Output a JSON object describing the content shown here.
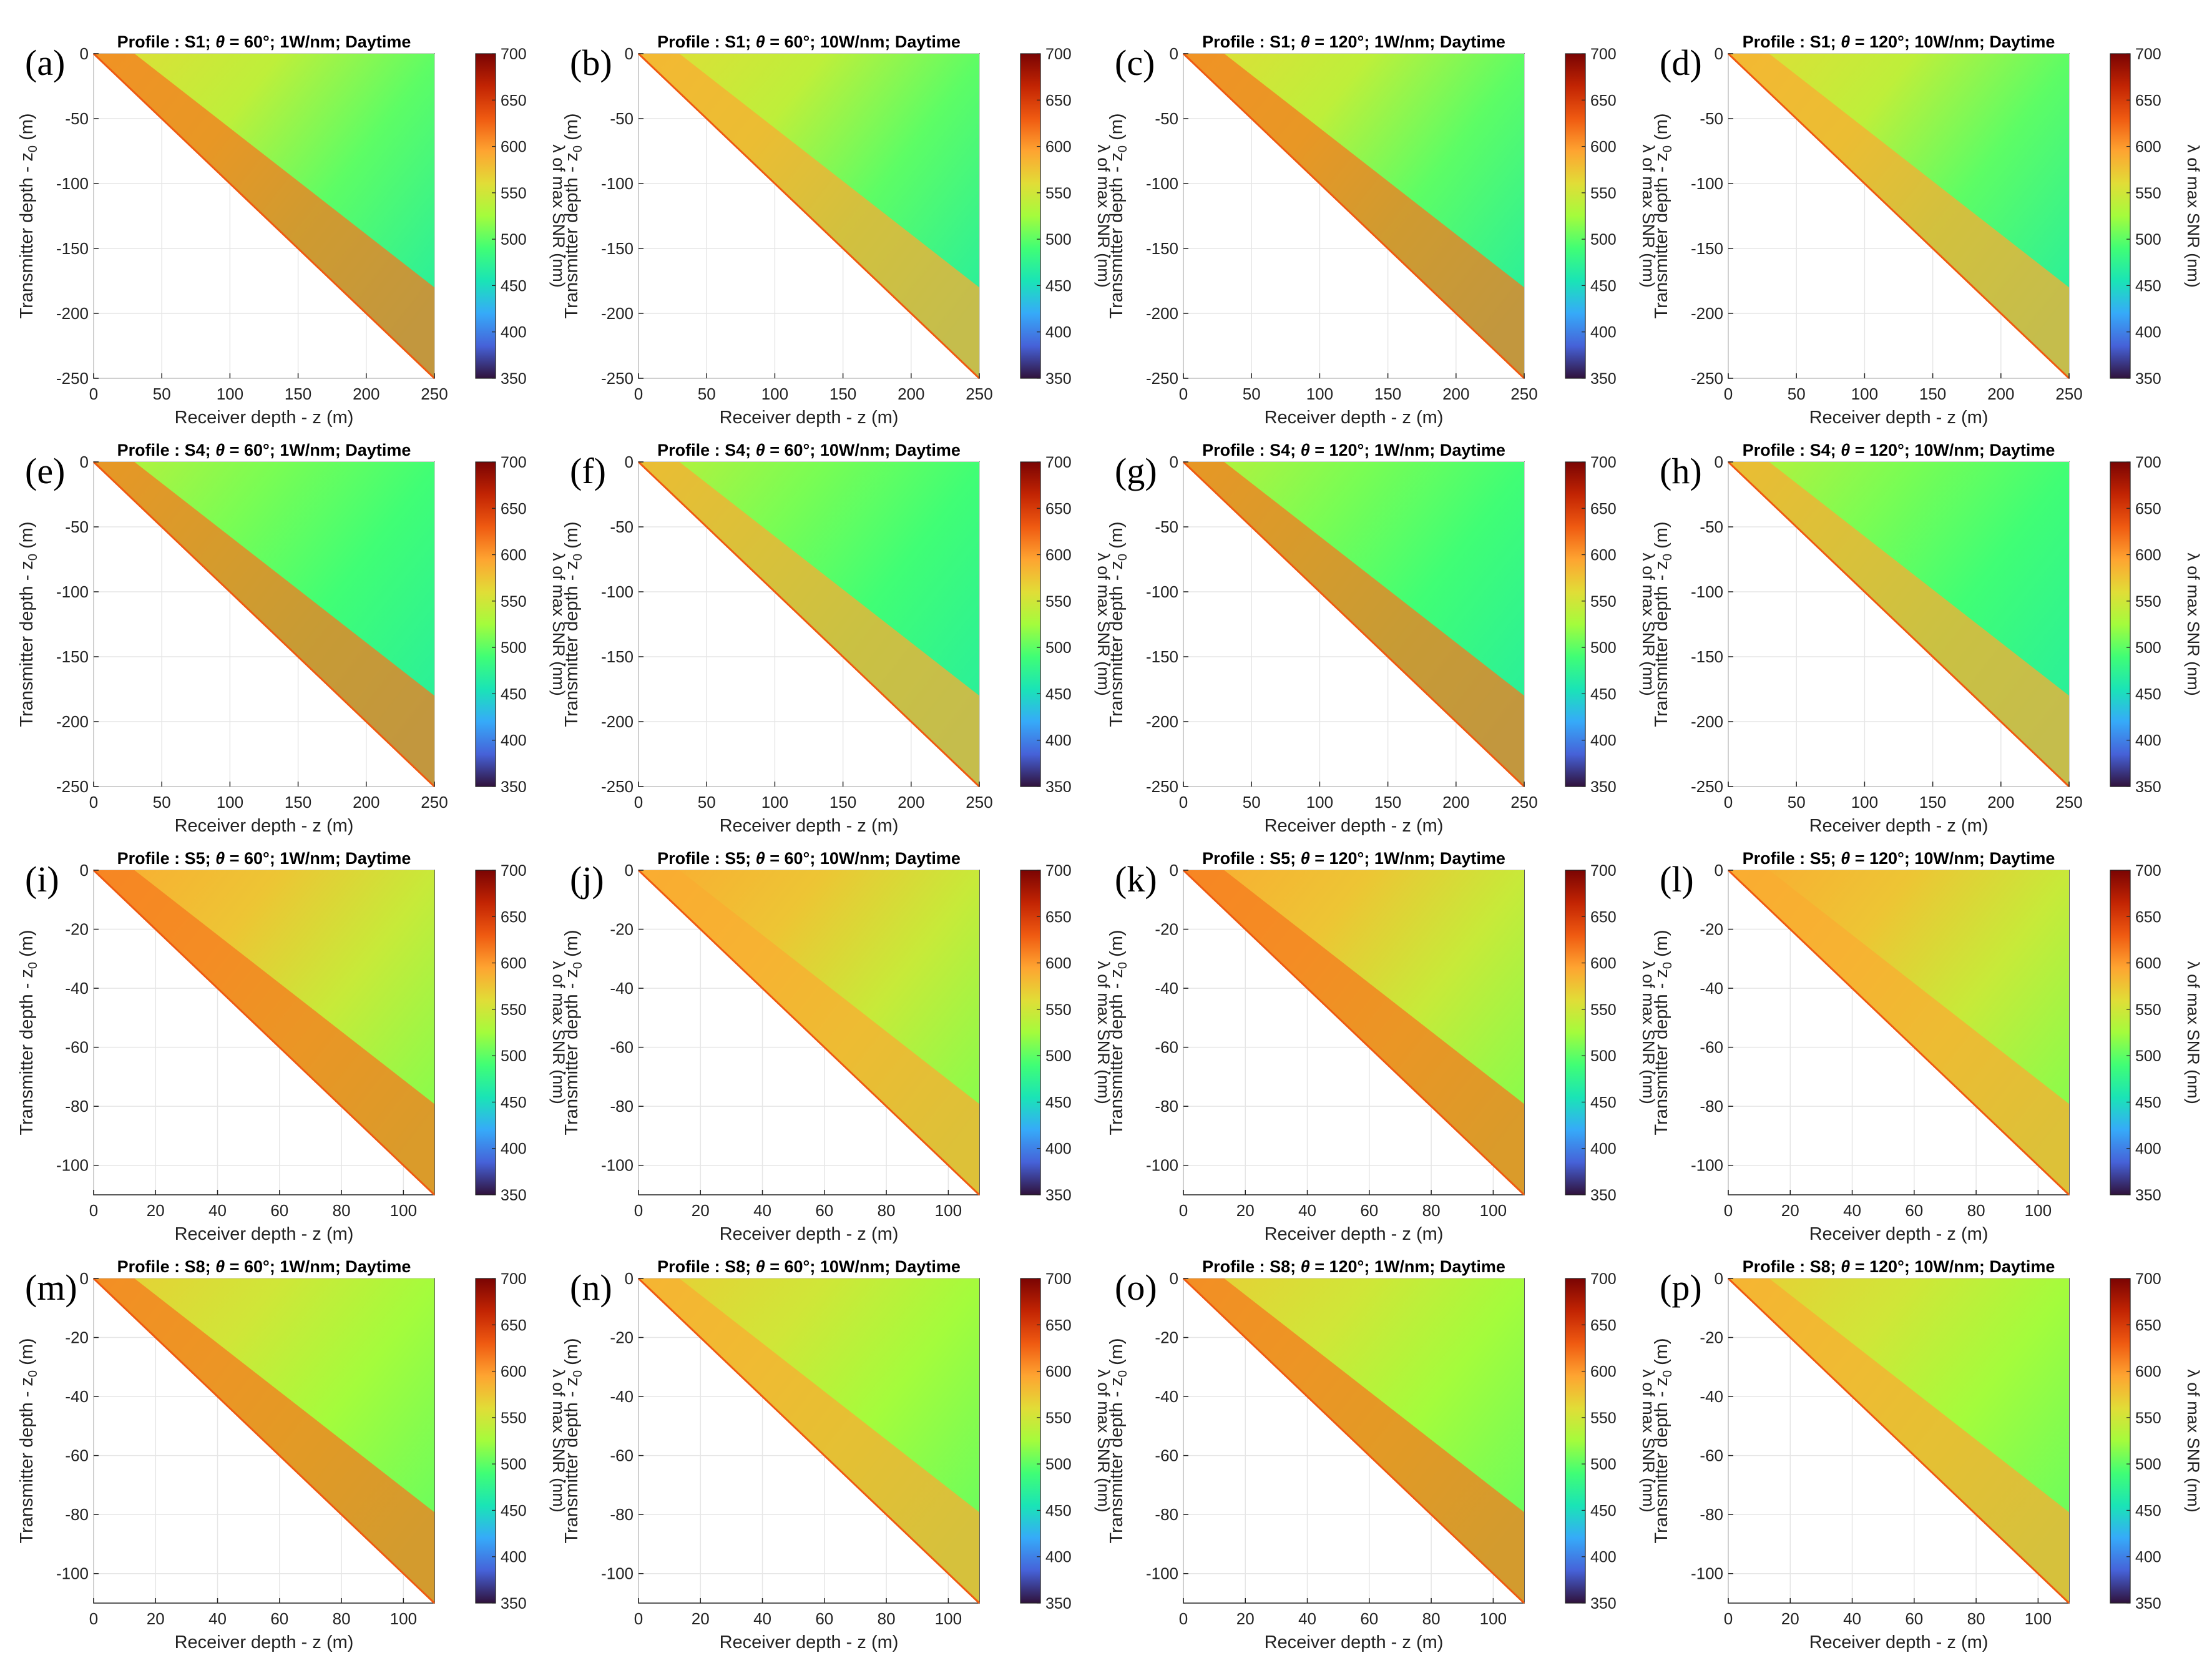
{
  "figure": {
    "colorbar_label": "λ of max SNR (nm)",
    "xlabel": "Receiver depth - z (m)",
    "ylabel_main": "Transmitter depth - z",
    "ylabel_sub": "0",
    "ylabel_unit": " (m)",
    "colorbar_ticks": [
      "700",
      "650",
      "600",
      "550",
      "500",
      "450",
      "400",
      "350"
    ],
    "colorbar_range": [
      350,
      700
    ],
    "colormap": "turbo"
  },
  "chart_data": [
    {
      "panel": "(a)",
      "profile": "S1",
      "theta_deg": 60,
      "power": "1W/nm",
      "time": "Daytime",
      "title_prefix": "Profile : S1; ",
      "title_suffix": " = 60°; 1W/nm; Daytime",
      "type": "heatmap",
      "xlim": [
        0,
        250
      ],
      "ylim": [
        -250,
        0
      ],
      "xticks": [
        0,
        50,
        100,
        150,
        200,
        250
      ],
      "yticks": [
        0,
        -50,
        -100,
        -150,
        -200,
        -250
      ]
    },
    {
      "panel": "(b)",
      "profile": "S1",
      "theta_deg": 60,
      "power": "10W/nm",
      "time": "Daytime",
      "title_prefix": "Profile : S1; ",
      "title_suffix": " = 60°; 10W/nm; Daytime",
      "type": "heatmap",
      "xlim": [
        0,
        250
      ],
      "ylim": [
        -250,
        0
      ],
      "xticks": [
        0,
        50,
        100,
        150,
        200,
        250
      ],
      "yticks": [
        0,
        -50,
        -100,
        -150,
        -200,
        -250
      ]
    },
    {
      "panel": "(c)",
      "profile": "S1",
      "theta_deg": 120,
      "power": "1W/nm",
      "time": "Daytime",
      "title_prefix": "Profile : S1; ",
      "title_suffix": " = 120°; 1W/nm; Daytime",
      "type": "heatmap",
      "xlim": [
        0,
        250
      ],
      "ylim": [
        -250,
        0
      ],
      "xticks": [
        0,
        50,
        100,
        150,
        200,
        250
      ],
      "yticks": [
        0,
        -50,
        -100,
        -150,
        -200,
        -250
      ]
    },
    {
      "panel": "(d)",
      "profile": "S1",
      "theta_deg": 120,
      "power": "10W/nm",
      "time": "Daytime",
      "title_prefix": "Profile : S1; ",
      "title_suffix": " = 120°; 10W/nm; Daytime",
      "type": "heatmap",
      "xlim": [
        0,
        250
      ],
      "ylim": [
        -250,
        0
      ],
      "xticks": [
        0,
        50,
        100,
        150,
        200,
        250
      ],
      "yticks": [
        0,
        -50,
        -100,
        -150,
        -200,
        -250
      ]
    },
    {
      "panel": "(e)",
      "profile": "S4",
      "theta_deg": 60,
      "power": "1W/nm",
      "time": "Daytime",
      "title_prefix": "Profile : S4; ",
      "title_suffix": " = 60°; 1W/nm; Daytime",
      "type": "heatmap",
      "xlim": [
        0,
        250
      ],
      "ylim": [
        -250,
        0
      ],
      "xticks": [
        0,
        50,
        100,
        150,
        200,
        250
      ],
      "yticks": [
        0,
        -50,
        -100,
        -150,
        -200,
        -250
      ]
    },
    {
      "panel": "(f)",
      "profile": "S4",
      "theta_deg": 60,
      "power": "10W/nm",
      "time": "Daytime",
      "title_prefix": "Profile : S4; ",
      "title_suffix": " = 60°; 10W/nm; Daytime",
      "type": "heatmap",
      "xlim": [
        0,
        250
      ],
      "ylim": [
        -250,
        0
      ],
      "xticks": [
        0,
        50,
        100,
        150,
        200,
        250
      ],
      "yticks": [
        0,
        -50,
        -100,
        -150,
        -200,
        -250
      ]
    },
    {
      "panel": "(g)",
      "profile": "S4",
      "theta_deg": 120,
      "power": "1W/nm",
      "time": "Daytime",
      "title_prefix": "Profile : S4; ",
      "title_suffix": " = 120°; 1W/nm; Daytime",
      "type": "heatmap",
      "xlim": [
        0,
        250
      ],
      "ylim": [
        -250,
        0
      ],
      "xticks": [
        0,
        50,
        100,
        150,
        200,
        250
      ],
      "yticks": [
        0,
        -50,
        -100,
        -150,
        -200,
        -250
      ]
    },
    {
      "panel": "(h)",
      "profile": "S4",
      "theta_deg": 120,
      "power": "10W/nm",
      "time": "Daytime",
      "title_prefix": "Profile : S4; ",
      "title_suffix": " = 120°; 10W/nm; Daytime",
      "type": "heatmap",
      "xlim": [
        0,
        250
      ],
      "ylim": [
        -250,
        0
      ],
      "xticks": [
        0,
        50,
        100,
        150,
        200,
        250
      ],
      "yticks": [
        0,
        -50,
        -100,
        -150,
        -200,
        -250
      ]
    },
    {
      "panel": "(i)",
      "profile": "S5",
      "theta_deg": 60,
      "power": "1W/nm",
      "time": "Daytime",
      "title_prefix": "Profile : S5; ",
      "title_suffix": " = 60°; 1W/nm; Daytime",
      "type": "heatmap",
      "xlim": [
        0,
        110
      ],
      "ylim": [
        -110,
        0
      ],
      "xticks": [
        0,
        20,
        40,
        60,
        80,
        100
      ],
      "yticks": [
        0,
        -20,
        -40,
        -60,
        -80,
        -100
      ]
    },
    {
      "panel": "(j)",
      "profile": "S5",
      "theta_deg": 60,
      "power": "10W/nm",
      "time": "Daytime",
      "title_prefix": "Profile : S5; ",
      "title_suffix": " = 60°; 10W/nm; Daytime",
      "type": "heatmap",
      "xlim": [
        0,
        110
      ],
      "ylim": [
        -110,
        0
      ],
      "xticks": [
        0,
        20,
        40,
        60,
        80,
        100
      ],
      "yticks": [
        0,
        -20,
        -40,
        -60,
        -80,
        -100
      ]
    },
    {
      "panel": "(k)",
      "profile": "S5",
      "theta_deg": 120,
      "power": "1W/nm",
      "time": "Daytime",
      "title_prefix": "Profile : S5; ",
      "title_suffix": " = 120°; 1W/nm; Daytime",
      "type": "heatmap",
      "xlim": [
        0,
        110
      ],
      "ylim": [
        -110,
        0
      ],
      "xticks": [
        0,
        20,
        40,
        60,
        80,
        100
      ],
      "yticks": [
        0,
        -20,
        -40,
        -60,
        -80,
        -100
      ]
    },
    {
      "panel": "(l)",
      "profile": "S5",
      "theta_deg": 120,
      "power": "10W/nm",
      "time": "Daytime",
      "title_prefix": "Profile : S5; ",
      "title_suffix": " = 120°; 10W/nm; Daytime",
      "type": "heatmap",
      "xlim": [
        0,
        110
      ],
      "ylim": [
        -110,
        0
      ],
      "xticks": [
        0,
        20,
        40,
        60,
        80,
        100
      ],
      "yticks": [
        0,
        -20,
        -40,
        -60,
        -80,
        -100
      ]
    },
    {
      "panel": "(m)",
      "profile": "S8",
      "theta_deg": 60,
      "power": "1W/nm",
      "time": "Daytime",
      "title_prefix": "Profile : S8; ",
      "title_suffix": " = 60°; 1W/nm; Daytime",
      "type": "heatmap",
      "xlim": [
        0,
        110
      ],
      "ylim": [
        -110,
        0
      ],
      "xticks": [
        0,
        20,
        40,
        60,
        80,
        100
      ],
      "yticks": [
        0,
        -20,
        -40,
        -60,
        -80,
        -100
      ]
    },
    {
      "panel": "(n)",
      "profile": "S8",
      "theta_deg": 60,
      "power": "10W/nm",
      "time": "Daytime",
      "title_prefix": "Profile : S8; ",
      "title_suffix": " = 60°; 10W/nm; Daytime",
      "type": "heatmap",
      "xlim": [
        0,
        110
      ],
      "ylim": [
        -110,
        0
      ],
      "xticks": [
        0,
        20,
        40,
        60,
        80,
        100
      ],
      "yticks": [
        0,
        -20,
        -40,
        -60,
        -80,
        -100
      ]
    },
    {
      "panel": "(o)",
      "profile": "S8",
      "theta_deg": 120,
      "power": "1W/nm",
      "time": "Daytime",
      "title_prefix": "Profile : S8; ",
      "title_suffix": " = 120°; 1W/nm; Daytime",
      "type": "heatmap",
      "xlim": [
        0,
        110
      ],
      "ylim": [
        -110,
        0
      ],
      "xticks": [
        0,
        20,
        40,
        60,
        80,
        100
      ],
      "yticks": [
        0,
        -20,
        -40,
        -60,
        -80,
        -100
      ]
    },
    {
      "panel": "(p)",
      "profile": "S8",
      "theta_deg": 120,
      "power": "10W/nm",
      "time": "Daytime",
      "title_prefix": "Profile : S8; ",
      "title_suffix": " = 120°; 10W/nm; Daytime",
      "type": "heatmap",
      "xlim": [
        0,
        110
      ],
      "ylim": [
        -110,
        0
      ],
      "xticks": [
        0,
        20,
        40,
        60,
        80,
        100
      ],
      "yticks": [
        0,
        -20,
        -40,
        -60,
        -80,
        -100
      ]
    }
  ]
}
